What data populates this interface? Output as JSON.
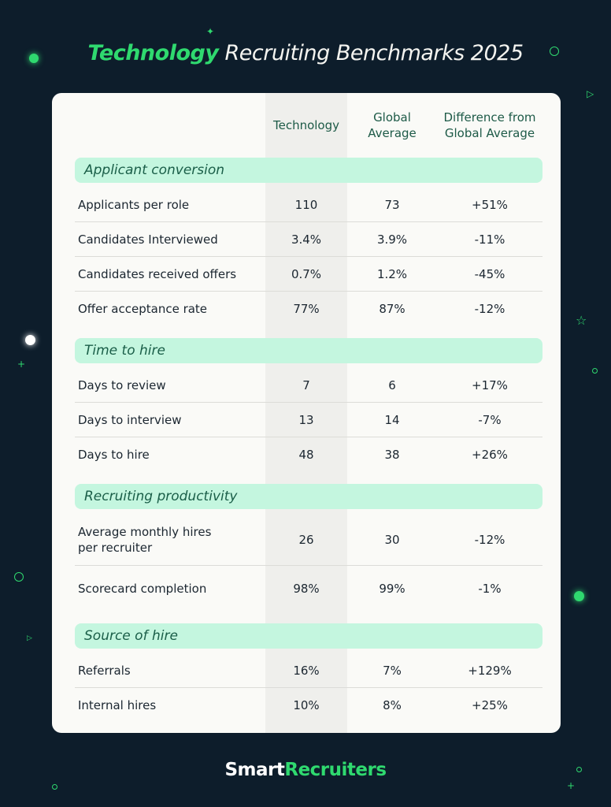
{
  "title": {
    "highlight": "Technology",
    "rest": " Recruiting Benchmarks 2025"
  },
  "logo": {
    "part1": "Smart",
    "part2": "Recruiters"
  },
  "colors": {
    "background": "#0d1d2b",
    "accent": "#2fd96f",
    "section_band": "#c4f6df",
    "card": "#fafaf7"
  },
  "chart_data": {
    "type": "table",
    "columns": [
      "Technology",
      "Global Average",
      "Difference from Global Average"
    ],
    "column_header_lines": [
      [
        "Technology"
      ],
      [
        "Global",
        "Average"
      ],
      [
        "Difference from",
        "Global Average"
      ]
    ],
    "sections": [
      {
        "title": "Applicant conversion",
        "rows": [
          {
            "label": [
              "Applicants per role"
            ],
            "values": [
              "110",
              "73",
              "+51%"
            ]
          },
          {
            "label": [
              "Candidates Interviewed"
            ],
            "values": [
              "3.4%",
              "3.9%",
              "-11%"
            ]
          },
          {
            "label": [
              "Candidates received offers"
            ],
            "values": [
              "0.7%",
              "1.2%",
              "-45%"
            ]
          },
          {
            "label": [
              "Offer acceptance rate"
            ],
            "values": [
              "77%",
              "87%",
              "-12%"
            ]
          }
        ]
      },
      {
        "title": "Time to hire",
        "rows": [
          {
            "label": [
              "Days to review"
            ],
            "values": [
              "7",
              "6",
              "+17%"
            ]
          },
          {
            "label": [
              "Days to interview"
            ],
            "values": [
              "13",
              "14",
              "-7%"
            ]
          },
          {
            "label": [
              "Days to hire"
            ],
            "values": [
              "48",
              "38",
              "+26%"
            ]
          }
        ]
      },
      {
        "title": "Recruiting productivity",
        "rows": [
          {
            "label": [
              "Average monthly hires",
              "per recruiter"
            ],
            "values": [
              "26",
              "30",
              "-12%"
            ]
          },
          {
            "label": [
              "Scorecard completion"
            ],
            "values": [
              "98%",
              "99%",
              "-1%"
            ]
          }
        ]
      },
      {
        "title": "Source of hire",
        "rows": [
          {
            "label": [
              "Referrals"
            ],
            "values": [
              "16%",
              "7%",
              "+129%"
            ]
          },
          {
            "label": [
              "Internal hires"
            ],
            "values": [
              "10%",
              "8%",
              "+25%"
            ]
          }
        ]
      }
    ]
  }
}
